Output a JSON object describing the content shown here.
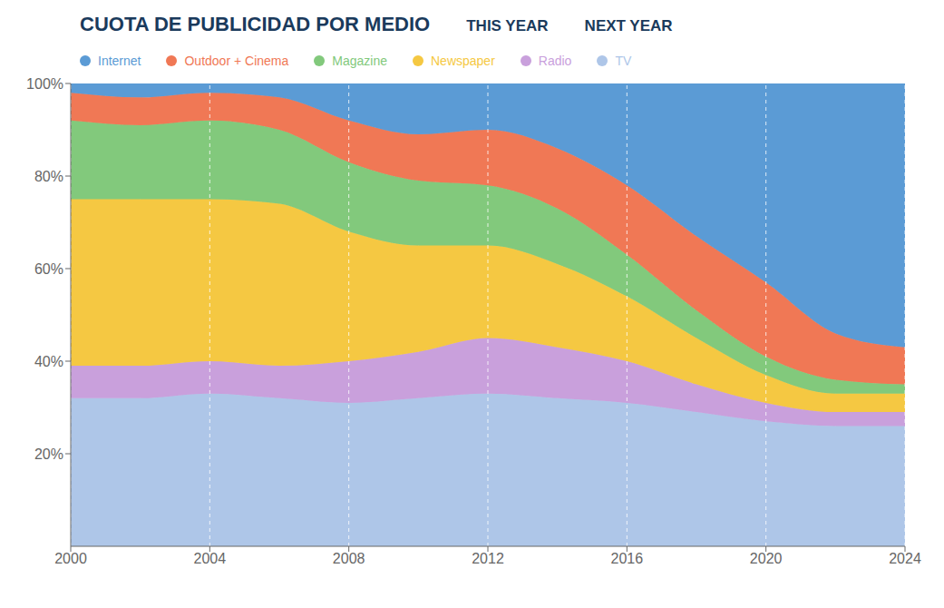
{
  "chart_data": {
    "type": "area",
    "title": "CUOTA DE PUBLICIDAD POR MEDIO",
    "subtitle": [
      "THIS YEAR",
      "NEXT YEAR"
    ],
    "x": [
      2000,
      2002,
      2004,
      2006,
      2008,
      2010,
      2012,
      2014,
      2016,
      2018,
      2020,
      2022,
      2024
    ],
    "series": [
      {
        "name": "TV",
        "color": "#aec6e8",
        "values": [
          32,
          32,
          33,
          32,
          31,
          32,
          33,
          32,
          31,
          29,
          27,
          26,
          26
        ]
      },
      {
        "name": "Radio",
        "color": "#c9a0dc",
        "values": [
          7,
          7,
          7,
          7,
          9,
          10,
          12,
          11,
          9,
          6,
          4,
          3,
          3
        ]
      },
      {
        "name": "Newspaper",
        "color": "#f5c842",
        "values": [
          36,
          36,
          35,
          35,
          28,
          23,
          20,
          18,
          14,
          10,
          6,
          4,
          4
        ]
      },
      {
        "name": "Magazine",
        "color": "#82c97c",
        "values": [
          17,
          16,
          17,
          16,
          15,
          14,
          13,
          12,
          9,
          6,
          4,
          3,
          2
        ]
      },
      {
        "name": "Outdoor + Cinema",
        "color": "#f07855",
        "values": [
          6,
          6,
          6,
          7,
          9,
          10,
          12,
          13,
          15,
          16,
          16,
          10,
          8
        ]
      },
      {
        "name": "Internet",
        "color": "#5b9bd5",
        "values": [
          2,
          3,
          2,
          3,
          8,
          11,
          10,
          14,
          22,
          33,
          43,
          54,
          57
        ]
      }
    ],
    "stacked": true,
    "xlim": [
      2000,
      2024
    ],
    "xticks": [
      2000,
      2004,
      2008,
      2012,
      2016,
      2020,
      2024
    ],
    "ylim": [
      0,
      100
    ],
    "yticks": [
      {
        "value": 20,
        "label": "20%"
      },
      {
        "value": 40,
        "label": "40%"
      },
      {
        "value": 60,
        "label": "60%"
      },
      {
        "value": 80,
        "label": "80%"
      },
      {
        "value": 100,
        "label": "100%"
      }
    ],
    "grid": "x",
    "legend": "top"
  }
}
